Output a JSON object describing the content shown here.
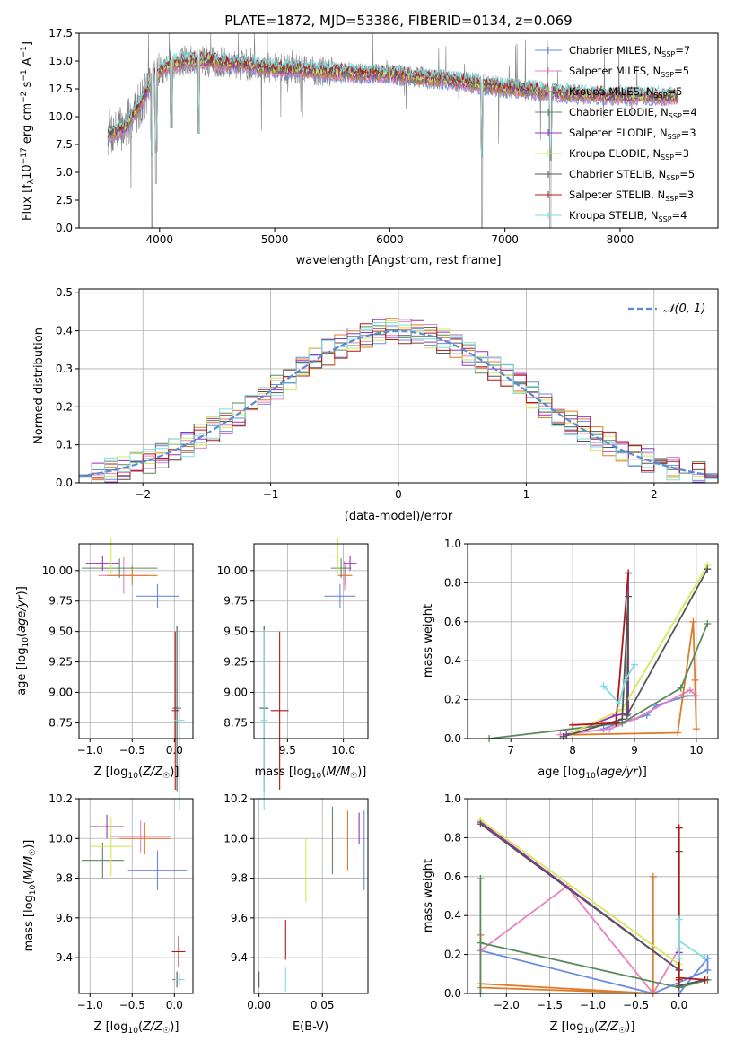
{
  "colors": {
    "c_miles": "#6a8be2",
    "s_miles": "#e882c4",
    "k_miles": "#e07c28",
    "c_elodie": "#5a8a5e",
    "s_elodie": "#9b30b8",
    "k_elodie": "#d4e858",
    "c_stelib": "#555555",
    "s_stelib": "#b01818",
    "k_stelib": "#80dce0",
    "data": "#808080",
    "normal": "#5b8bd6"
  },
  "chart_data": [
    {
      "id": "spectrum",
      "type": "line",
      "title": "PLATE=1872, MJD=53386, FIBERID=0134, z=0.069",
      "xlabel": "wavelength [Angstrom, rest frame]",
      "ylabel": "Flux [f_λ10^-17 erg cm^-2 s^-1 A^-1]",
      "xlim": [
        3300,
        8850
      ],
      "ylim": [
        0,
        17.5
      ],
      "xticks": [
        "4000",
        "5000",
        "6000",
        "7000",
        "8000"
      ],
      "yticks": [
        "0.0",
        "2.5",
        "5.0",
        "7.5",
        "10.0",
        "12.5",
        "15.0",
        "17.5"
      ],
      "grid": false,
      "legend_position": "top-right",
      "legend": [
        {
          "name": "Chabrier MILES, N_SSP=7",
          "color_key": "c_miles"
        },
        {
          "name": "Salpeter MILES, N_SSP=5",
          "color_key": "s_miles"
        },
        {
          "name": "Kroupa MILES, N_SSP=5",
          "color_key": "k_miles"
        },
        {
          "name": "Chabrier ELODIE, N_SSP=4",
          "color_key": "c_elodie"
        },
        {
          "name": "Salpeter ELODIE, N_SSP=3",
          "color_key": "s_elodie"
        },
        {
          "name": "Kroupa ELODIE, N_SSP=3",
          "color_key": "k_elodie"
        },
        {
          "name": "Chabrier STELIB, N_SSP=5",
          "color_key": "c_stelib"
        },
        {
          "name": "Salpeter STELIB, N_SSP=3",
          "color_key": "s_stelib"
        },
        {
          "name": "Kroupa STELIB, N_SSP=4",
          "color_key": "k_stelib"
        }
      ],
      "continuum": {
        "x": [
          3550,
          3700,
          3850,
          3950,
          4050,
          4200,
          4400,
          4600,
          4800,
          5000,
          5200,
          5500,
          6000,
          6500,
          7000,
          7500,
          8000,
          8500
        ],
        "y": [
          8.5,
          9.0,
          11.5,
          13.5,
          14.5,
          15.0,
          15.0,
          14.8,
          14.6,
          14.3,
          14.2,
          14.0,
          13.8,
          13.3,
          12.6,
          12.1,
          11.9,
          11.8
        ]
      },
      "absorption_features": [
        {
          "x": 3934,
          "y": 0.0
        },
        {
          "x": 3969,
          "y": 4.0
        },
        {
          "x": 4102,
          "y": 9.0
        },
        {
          "x": 4340,
          "y": 8.5
        },
        {
          "x": 6800,
          "y": 0.0
        },
        {
          "x": 7395,
          "y": 0.0
        }
      ]
    },
    {
      "id": "residuals",
      "type": "histogram",
      "xlabel": "(data-model)/error",
      "ylabel": "Normed distribution",
      "xlim": [
        -2.5,
        2.5
      ],
      "ylim": [
        0,
        0.51
      ],
      "xticks": [
        "−2",
        "−1",
        "0",
        "1",
        "2"
      ],
      "yticks": [
        "0.0",
        "0.1",
        "0.2",
        "0.3",
        "0.4",
        "0.5"
      ],
      "grid": true,
      "legend_position": "top-right",
      "legend": [
        {
          "name": "N(0,1)",
          "style": "dashed",
          "color_key": "normal"
        }
      ],
      "bin_width": 0.1
    },
    {
      "id": "age_vs_z",
      "type": "scatter",
      "xlabel": "Z [log10(Z/Z☉)]",
      "ylabel": "age [log10(age/yr)]",
      "xlim": [
        -1.13,
        0.22
      ],
      "ylim": [
        8.62,
        10.22
      ],
      "xticks": [
        "−1.0",
        "−0.5",
        "0.0"
      ],
      "yticks": [
        "8.75",
        "9.00",
        "9.25",
        "9.50",
        "9.75",
        "10.00"
      ],
      "grid": true,
      "series": [
        {
          "color_key": "c_miles",
          "x": -0.2,
          "y": 9.79,
          "xerr": 0.25,
          "yerr": 0.1
        },
        {
          "color_key": "s_miles",
          "x": -0.6,
          "y": 9.96,
          "xerr": 0.3,
          "yerr": 0.15
        },
        {
          "color_key": "k_miles",
          "x": -0.5,
          "y": 9.96,
          "xerr": 0.3,
          "yerr": 0.08
        },
        {
          "color_key": "c_elodie",
          "x": -0.65,
          "y": 10.02,
          "xerr": 0.45,
          "yerr": 0.08
        },
        {
          "color_key": "s_elodie",
          "x": -0.85,
          "y": 10.06,
          "xerr": 0.2,
          "yerr": 0.06
        },
        {
          "color_key": "k_elodie",
          "x": -0.75,
          "y": 10.12,
          "xerr": 0.25,
          "yerr": 0.15
        },
        {
          "color_key": "c_stelib",
          "x": 0.03,
          "y": 8.87,
          "xerr": 0.05,
          "yerr": 0.68
        },
        {
          "color_key": "s_stelib",
          "x": 0.01,
          "y": 8.85,
          "xerr": 0.04,
          "yerr": 0.65
        },
        {
          "color_key": "k_stelib",
          "x": 0.06,
          "y": 8.77,
          "xerr": 0.06,
          "yerr": 0.74
        }
      ]
    },
    {
      "id": "age_vs_mass",
      "type": "scatter",
      "xlabel": "mass [log10(M/M☉)]",
      "ylabel": "",
      "xlim": [
        9.2,
        10.22
      ],
      "ylim": [
        8.62,
        10.22
      ],
      "xticks": [
        "9.5",
        "10.0"
      ],
      "yticks": [
        "8.75",
        "9.00",
        "9.25",
        "9.50",
        "9.75",
        "10.00"
      ],
      "grid": true,
      "series": [
        {
          "color_key": "c_miles",
          "x": 9.97,
          "y": 9.79,
          "xerr": 0.14,
          "yerr": 0.1
        },
        {
          "color_key": "s_miles",
          "x": 10.01,
          "y": 9.96,
          "xerr": 0.06,
          "yerr": 0.12
        },
        {
          "color_key": "k_miles",
          "x": 10.02,
          "y": 9.96,
          "xerr": 0.06,
          "yerr": 0.08
        },
        {
          "color_key": "c_elodie",
          "x": 9.98,
          "y": 10.02,
          "xerr": 0.09,
          "yerr": 0.08
        },
        {
          "color_key": "s_elodie",
          "x": 10.06,
          "y": 10.06,
          "xerr": 0.06,
          "yerr": 0.06
        },
        {
          "color_key": "k_elodie",
          "x": 9.95,
          "y": 10.12,
          "xerr": 0.12,
          "yerr": 0.15
        },
        {
          "color_key": "c_stelib",
          "x": 9.29,
          "y": 8.87,
          "xerr": 0.04,
          "yerr": 0.68
        },
        {
          "color_key": "s_stelib",
          "x": 9.43,
          "y": 8.85,
          "xerr": 0.08,
          "yerr": 0.65
        },
        {
          "color_key": "k_stelib",
          "x": 9.29,
          "y": 8.77,
          "xerr": 0.03,
          "yerr": 0.74
        }
      ]
    },
    {
      "id": "weight_vs_age",
      "type": "line",
      "xlabel": "age [log10(age/yr)]",
      "ylabel": "mass weight",
      "xlim": [
        6.3,
        10.35
      ],
      "ylim": [
        0,
        1.0
      ],
      "xticks": [
        "7",
        "8",
        "9",
        "10"
      ],
      "yticks": [
        "0.0",
        "0.2",
        "0.4",
        "0.6",
        "0.8",
        "1.0"
      ],
      "grid": true,
      "series": [
        {
          "color_key": "c_miles",
          "x": [
            8.5,
            8.75,
            9.2,
            9.35,
            9.85,
            10.0
          ],
          "y": [
            0.05,
            0.08,
            0.12,
            0.17,
            0.22,
            0.22
          ]
        },
        {
          "color_key": "s_miles",
          "x": [
            7.8,
            8.6,
            9.0,
            9.9,
            10.0
          ],
          "y": [
            0.02,
            0.05,
            0.1,
            0.25,
            0.22
          ]
        },
        {
          "color_key": "k_miles",
          "x": [
            8.0,
            9.7,
            9.95,
            10.0,
            9.98
          ],
          "y": [
            0.02,
            0.03,
            0.6,
            0.05,
            0.3
          ]
        },
        {
          "color_key": "c_elodie",
          "x": [
            6.65,
            8.8,
            9.75,
            10.18
          ],
          "y": [
            0.0,
            0.08,
            0.26,
            0.59
          ]
        },
        {
          "color_key": "s_elodie",
          "x": [
            7.9,
            8.7,
            8.9,
            8.9
          ],
          "y": [
            0.02,
            0.12,
            0.13,
            0.85
          ]
        },
        {
          "color_key": "k_elodie",
          "x": [
            8.0,
            8.8,
            10.18
          ],
          "y": [
            0.03,
            0.15,
            0.89
          ]
        },
        {
          "color_key": "c_stelib",
          "x": [
            7.85,
            8.8,
            8.9,
            8.88,
            10.18
          ],
          "y": [
            0.01,
            0.1,
            0.73,
            0.12,
            0.87
          ]
        },
        {
          "color_key": "s_stelib",
          "x": [
            8.0,
            8.7,
            8.9
          ],
          "y": [
            0.07,
            0.08,
            0.85
          ]
        },
        {
          "color_key": "k_stelib",
          "x": [
            8.5,
            8.75,
            8.85,
            9.0
          ],
          "y": [
            0.27,
            0.18,
            0.3,
            0.38
          ]
        }
      ]
    },
    {
      "id": "mass_vs_z",
      "type": "scatter",
      "xlabel": "Z [log10(Z/Z☉)]",
      "ylabel": "mass [log10(M/M☉)]",
      "xlim": [
        -1.13,
        0.22
      ],
      "ylim": [
        9.22,
        10.2
      ],
      "xticks": [
        "−1.0",
        "−0.5",
        "0.0"
      ],
      "yticks": [
        "9.4",
        "9.6",
        "9.8",
        "10.0",
        "10.2"
      ],
      "grid": true,
      "series": [
        {
          "color_key": "c_miles",
          "x": -0.2,
          "y": 9.84,
          "xerr": 0.35,
          "yerr": 0.1
        },
        {
          "color_key": "s_miles",
          "x": -0.4,
          "y": 10.01,
          "xerr": 0.35,
          "yerr": 0.08
        },
        {
          "color_key": "k_miles",
          "x": -0.35,
          "y": 10.0,
          "xerr": 0.3,
          "yerr": 0.08
        },
        {
          "color_key": "c_elodie",
          "x": -0.85,
          "y": 9.89,
          "xerr": 0.25,
          "yerr": 0.09
        },
        {
          "color_key": "s_elodie",
          "x": -0.8,
          "y": 10.06,
          "xerr": 0.2,
          "yerr": 0.06
        },
        {
          "color_key": "k_elodie",
          "x": -0.75,
          "y": 9.96,
          "xerr": 0.25,
          "yerr": 0.15
        },
        {
          "color_key": "c_stelib",
          "x": 0.03,
          "y": 9.29,
          "xerr": 0.05,
          "yerr": 0.04
        },
        {
          "color_key": "s_stelib",
          "x": 0.05,
          "y": 9.43,
          "xerr": 0.08,
          "yerr": 0.08
        },
        {
          "color_key": "k_stelib",
          "x": 0.06,
          "y": 9.29,
          "xerr": 0.06,
          "yerr": 0.03
        }
      ]
    },
    {
      "id": "mass_vs_ebv",
      "type": "scatter",
      "xlabel": "E(B-V)",
      "ylabel": "",
      "xlim": [
        -0.004,
        0.086
      ],
      "ylim": [
        9.22,
        10.2
      ],
      "xticks": [
        "0.00",
        "0.05"
      ],
      "yticks": [
        "9.4",
        "9.6",
        "9.8",
        "10.0",
        "10.2"
      ],
      "grid": true,
      "series": [
        {
          "color_key": "c_miles",
          "x": 0.083,
          "y": 9.94,
          "yerr": 0.2
        },
        {
          "color_key": "s_miles",
          "x": 0.075,
          "y": 10.0,
          "yerr": 0.12
        },
        {
          "color_key": "k_miles",
          "x": 0.07,
          "y": 9.99,
          "yerr": 0.15
        },
        {
          "color_key": "c_elodie",
          "x": 0.058,
          "y": 9.99,
          "yerr": 0.17
        },
        {
          "color_key": "s_elodie",
          "x": 0.079,
          "y": 10.05,
          "yerr": 0.08
        },
        {
          "color_key": "k_elodie",
          "x": 0.037,
          "y": 9.84,
          "yerr": 0.16
        },
        {
          "color_key": "c_stelib",
          "x": 0.0,
          "y": 9.29,
          "yerr": 0.04
        },
        {
          "color_key": "s_stelib",
          "x": 0.021,
          "y": 9.49,
          "yerr": 0.1
        },
        {
          "color_key": "k_stelib",
          "x": 0.021,
          "y": 9.29,
          "yerr": 0.06
        }
      ]
    },
    {
      "id": "weight_vs_z",
      "type": "line",
      "xlabel": "Z [log10(Z/Z☉)]",
      "ylabel": "mass weight",
      "xlim": [
        -2.45,
        0.45
      ],
      "ylim": [
        0,
        1.0
      ],
      "xticks": [
        "−2.0",
        "−1.5",
        "−1.0",
        "−0.5",
        "0.0"
      ],
      "yticks": [
        "0.0",
        "0.2",
        "0.4",
        "0.6",
        "0.8",
        "1.0"
      ],
      "grid": true,
      "series": [
        {
          "color_key": "c_miles",
          "x": [
            -2.3,
            -0.3,
            0.33,
            0.33,
            0.0
          ],
          "y": [
            0.22,
            0.0,
            0.12,
            0.18,
            0.0
          ]
        },
        {
          "color_key": "s_miles",
          "x": [
            -2.3,
            -1.3,
            -0.3,
            0.0,
            0.0
          ],
          "y": [
            0.22,
            0.55,
            0.0,
            0.23,
            0.0
          ]
        },
        {
          "color_key": "k_miles",
          "x": [
            -2.3,
            -2.3,
            -0.3,
            -0.3,
            -0.3,
            -2.3
          ],
          "y": [
            0.3,
            0.03,
            0.0,
            0.6,
            0.0,
            0.05
          ]
        },
        {
          "color_key": "c_elodie",
          "x": [
            -2.3,
            -2.3,
            -2.3,
            0.0,
            0.33
          ],
          "y": [
            0.59,
            0.0,
            0.26,
            0.03,
            0.07
          ]
        },
        {
          "color_key": "s_elodie",
          "x": [
            -2.3,
            0.0,
            0.0
          ],
          "y": [
            0.88,
            0.12,
            0.21
          ]
        },
        {
          "color_key": "k_elodie",
          "x": [
            -2.3,
            0.0
          ],
          "y": [
            0.89,
            0.15
          ]
        },
        {
          "color_key": "c_stelib",
          "x": [
            -2.3,
            0.0,
            0.0,
            0.0,
            0.3
          ],
          "y": [
            0.87,
            0.12,
            0.73,
            0.04,
            0.07
          ]
        },
        {
          "color_key": "s_stelib",
          "x": [
            0.0,
            0.0,
            0.0,
            0.3
          ],
          "y": [
            0.85,
            0.07,
            0.08,
            0.07
          ]
        },
        {
          "color_key": "k_stelib",
          "x": [
            0.0,
            0.0,
            0.0,
            0.3
          ],
          "y": [
            0.38,
            0.18,
            0.27,
            0.18
          ]
        }
      ]
    }
  ]
}
